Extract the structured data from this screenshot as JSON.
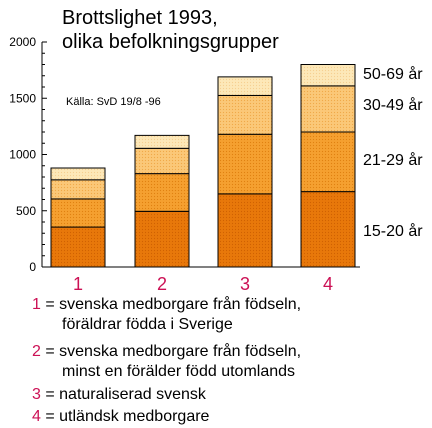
{
  "chart_data": {
    "type": "bar",
    "stacked": true,
    "title": "Brottslighet 1993,\nolika befolkningsgrupper",
    "source": "Källa: SvD 19/8 -96",
    "categories": [
      "1",
      "2",
      "3",
      "4"
    ],
    "series": [
      {
        "name": "15-20 år",
        "values": [
          355,
          495,
          650,
          670
        ],
        "color": "#e8780a"
      },
      {
        "name": "21-29 år",
        "values": [
          250,
          335,
          530,
          530
        ],
        "color": "#f5a030"
      },
      {
        "name": "30-49 år",
        "values": [
          170,
          225,
          345,
          410
        ],
        "color": "#fbc878"
      },
      {
        "name": "50-69 år",
        "values": [
          105,
          115,
          165,
          190
        ],
        "color": "#fde8b8"
      }
    ],
    "ylim": [
      0,
      2000
    ],
    "yticks": [
      0,
      500,
      1000,
      1500,
      2000
    ],
    "grid": false,
    "legend": "right",
    "category_label_color": "#cc1155"
  },
  "legend": [
    {
      "num": "1",
      "lines": [
        "= svenska medborgare från födseln,",
        "föräldrar födda i Sverige"
      ]
    },
    {
      "num": "2",
      "lines": [
        "= svenska medborgare från födseln,",
        "minst en förälder född utomlands"
      ]
    },
    {
      "num": "3",
      "lines": [
        "= naturaliserad svensk"
      ]
    },
    {
      "num": "4",
      "lines": [
        "= utländsk medborgare"
      ]
    }
  ]
}
